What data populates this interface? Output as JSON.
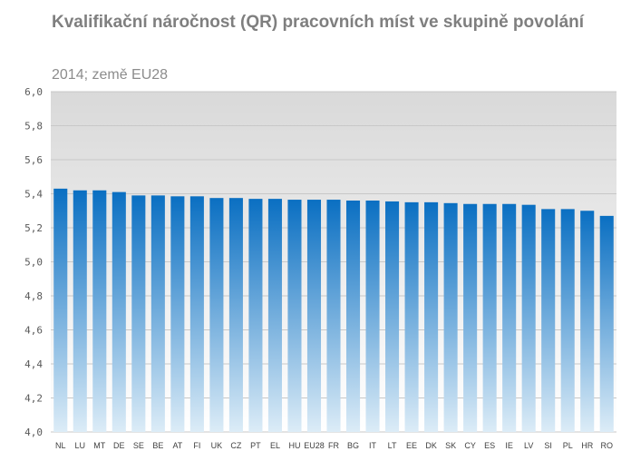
{
  "chart_data": {
    "type": "bar",
    "title": "Kvalifikační náročnost (QR)  pracovních míst ve skupině povolání",
    "subtitle": "2014; země EU28",
    "categories": [
      "NL",
      "LU",
      "MT",
      "DE",
      "SE",
      "BE",
      "AT",
      "FI",
      "UK",
      "CZ",
      "PT",
      "EL",
      "HU",
      "EU28",
      "FR",
      "BG",
      "IT",
      "LT",
      "EE",
      "DK",
      "SK",
      "CY",
      "ES",
      "IE",
      "LV",
      "SI",
      "PL",
      "HR",
      "RO"
    ],
    "values": [
      5.43,
      5.42,
      5.42,
      5.41,
      5.39,
      5.39,
      5.385,
      5.385,
      5.375,
      5.375,
      5.37,
      5.37,
      5.365,
      5.365,
      5.365,
      5.36,
      5.36,
      5.355,
      5.35,
      5.35,
      5.345,
      5.34,
      5.34,
      5.34,
      5.335,
      5.31,
      5.31,
      5.3,
      5.27
    ],
    "ylim": [
      4.0,
      6.0
    ],
    "yticks": [
      "4,0",
      "4,2",
      "4,4",
      "4,6",
      "4,8",
      "5,0",
      "5,2",
      "5,4",
      "5,6",
      "5,8",
      "6,0"
    ],
    "xlabel": "",
    "ylabel": "",
    "grid": true,
    "colors": {
      "bar_top": "#0a6fc2",
      "bar_bottom": "#dcecf7",
      "plot_bg_top": "#d9d9d9",
      "plot_bg_bottom": "#ffffff",
      "gridline": "#c8c8c8"
    }
  }
}
